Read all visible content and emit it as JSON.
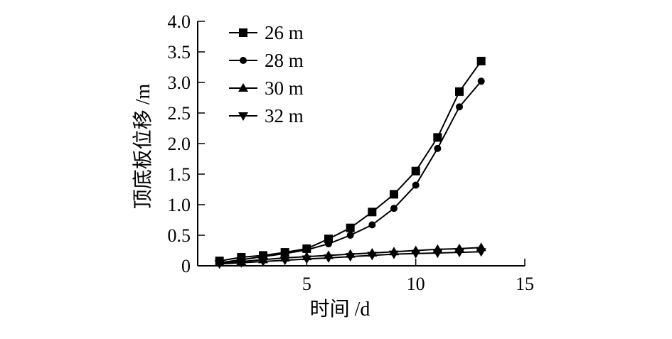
{
  "chart_data": {
    "type": "line",
    "title": "",
    "xlabel": "时间 /d",
    "ylabel": "顶底板位移 /m",
    "xlim": [
      0,
      15
    ],
    "ylim": [
      0,
      4.0
    ],
    "x_ticks": [
      "5",
      "10",
      "15"
    ],
    "y_ticks": [
      "0",
      "0.5",
      "1.0",
      "1.5",
      "2.0",
      "2.5",
      "3.0",
      "3.5",
      "4.0"
    ],
    "grid": false,
    "legend_position": "top-left",
    "x": [
      1,
      2,
      3,
      4,
      5,
      6,
      7,
      8,
      9,
      10,
      11,
      12,
      13
    ],
    "series": [
      {
        "name": "26 m",
        "marker": "square",
        "values": [
          0.08,
          0.14,
          0.17,
          0.22,
          0.28,
          0.44,
          0.62,
          0.88,
          1.17,
          1.55,
          2.1,
          2.85,
          3.35
        ]
      },
      {
        "name": "28 m",
        "marker": "circle",
        "values": [
          0.05,
          0.1,
          0.15,
          0.2,
          0.26,
          0.36,
          0.5,
          0.67,
          0.94,
          1.32,
          1.92,
          2.6,
          3.02
        ]
      },
      {
        "name": "30 m",
        "marker": "triangle-up",
        "values": [
          0.05,
          0.07,
          0.1,
          0.13,
          0.15,
          0.17,
          0.19,
          0.21,
          0.23,
          0.25,
          0.27,
          0.28,
          0.3
        ]
      },
      {
        "name": "32 m",
        "marker": "triangle-down",
        "values": [
          0.03,
          0.05,
          0.07,
          0.09,
          0.11,
          0.13,
          0.15,
          0.17,
          0.19,
          0.2,
          0.21,
          0.22,
          0.23
        ]
      }
    ]
  }
}
